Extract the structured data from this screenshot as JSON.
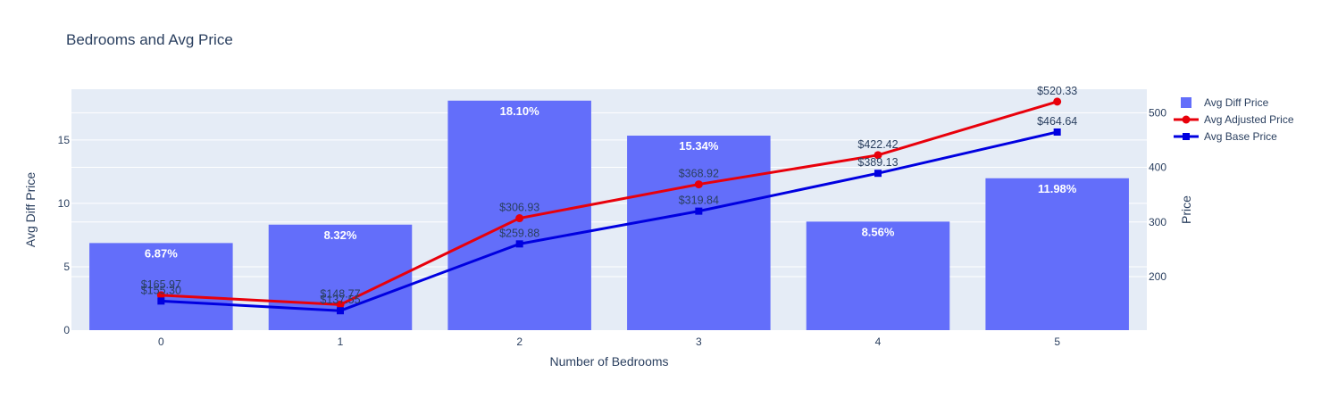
{
  "chart_data": {
    "type": "bar",
    "title": "Bedrooms and Avg Price",
    "xlabel": "Number of Bedrooms",
    "ylabel": "Avg Diff Price",
    "y2label": "Price",
    "categories": [
      "0",
      "1",
      "2",
      "3",
      "4",
      "5"
    ],
    "ylim": [
      0,
      19
    ],
    "y_ticks": [
      0,
      5,
      10,
      15
    ],
    "y2lim": [
      102,
      543
    ],
    "y2_ticks": [
      200,
      300,
      400,
      500
    ],
    "grid": true,
    "legend_position": "top-right",
    "series": [
      {
        "name": "Avg Diff Price",
        "type": "bar",
        "axis": "y",
        "color": "#636efa",
        "values": [
          6.87,
          8.32,
          18.1,
          15.34,
          8.56,
          11.98
        ],
        "labels": [
          "6.87%",
          "8.32%",
          "18.10%",
          "15.34%",
          "8.56%",
          "11.98%"
        ]
      },
      {
        "name": "Avg Adjusted Price",
        "type": "line",
        "axis": "y2",
        "color": "#e8000b",
        "marker": "circle",
        "values": [
          165.97,
          148.77,
          306.93,
          368.92,
          422.42,
          520.33
        ],
        "labels": [
          "$165.97",
          "$148.77",
          "$306.93",
          "$368.92",
          "$422.42",
          "$520.33"
        ]
      },
      {
        "name": "Avg Base Price",
        "type": "line",
        "axis": "y2",
        "color": "#0000e0",
        "marker": "square",
        "values": [
          155.3,
          137.55,
          259.88,
          319.84,
          389.13,
          464.64
        ],
        "labels": [
          "$155.30",
          "$137.55",
          "$259.88",
          "$319.84",
          "$389.13",
          "$464.64"
        ]
      }
    ]
  },
  "colors": {
    "plot_bg": "#e5ecf6",
    "grid": "#ffffff",
    "text": "#2a3f5f"
  }
}
